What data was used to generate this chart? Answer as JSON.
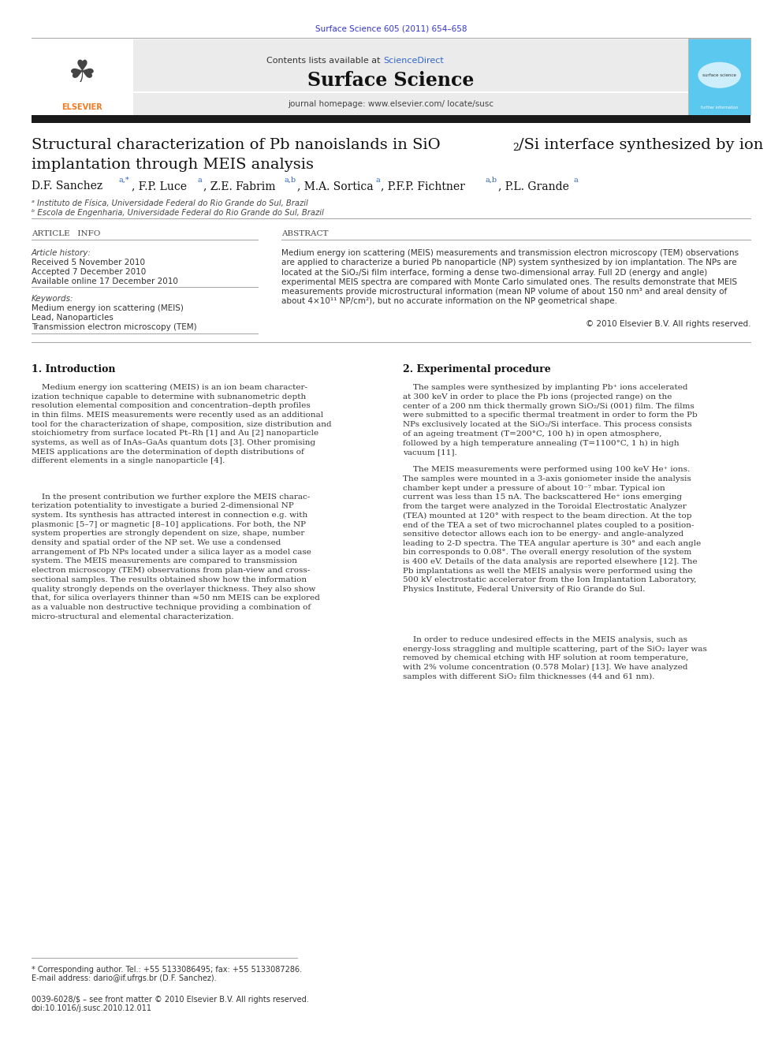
{
  "page_width": 9.92,
  "page_height": 13.23,
  "bg_color": "#ffffff",
  "header_journal_ref": "Surface Science 605 (2011) 654–658",
  "header_journal_ref_color": "#3333cc",
  "journal_name": "Surface Science",
  "journal_homepage": "journal homepage: www.elsevier.com/ locate/susc",
  "contents_text": "Contents lists available at ",
  "science_direct": "ScienceDirect",
  "science_direct_color": "#3366cc",
  "affil_a": "ᵃ Instituto de Física, Universidade Federal do Rio Grande do Sul, Brazil",
  "affil_b": "ᵇ Escola de Engenharia, Universidade Federal do Rio Grande do Sul, Brazil",
  "article_info_header": "ARTICLE   INFO",
  "abstract_header": "ABSTRACT",
  "article_history_label": "Article history:",
  "received": "Received 5 November 2010",
  "accepted": "Accepted 7 December 2010",
  "available": "Available online 17 December 2010",
  "keywords_label": "Keywords:",
  "kw1": "Medium energy ion scattering (MEIS)",
  "kw2": "Lead, Nanoparticles",
  "kw3": "Transmission electron microscopy (TEM)",
  "copyright": "© 2010 Elsevier B.V. All rights reserved.",
  "section1_title": "1. Introduction",
  "section2_title": "2. Experimental procedure",
  "footer_text1": "* Corresponding author. Tel.: +55 5133086495; fax: +55 5133087286.",
  "footer_text2": "E-mail address: dario@if.ufrgs.br (D.F. Sanchez).",
  "footer_issn": "0039-6028/$ – see front matter © 2010 Elsevier B.V. All rights reserved.",
  "footer_doi": "doi:10.1016/j.susc.2010.12.011",
  "header_bar_color": "#1a1a1a",
  "elsevier_orange": "#f47920",
  "light_bg": "#ebebeb"
}
